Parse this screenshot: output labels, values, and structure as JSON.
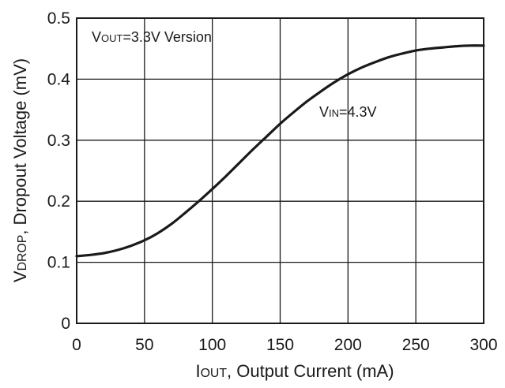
{
  "chart_data": {
    "type": "line",
    "xlabel": {
      "main": "I",
      "sub": "OUT",
      "rest": ", Output Current (mA)"
    },
    "ylabel": {
      "main": "V",
      "sub": "DROP",
      "rest": ", Dropout Voltage (mV)"
    },
    "xlim": [
      0,
      300
    ],
    "ylim": [
      0,
      0.5
    ],
    "x_ticks": [
      "0",
      "50",
      "100",
      "150",
      "200",
      "250",
      "300"
    ],
    "y_ticks": [
      "0",
      "0.1",
      "0.2",
      "0.3",
      "0.4",
      "0.5"
    ],
    "grid": true,
    "annotations": [
      {
        "main": "V",
        "sub": "OUT",
        "rest": "=3.3V Version"
      },
      {
        "main": "V",
        "sub": "IN",
        "rest": "=4.3V"
      }
    ],
    "series": [
      {
        "name": "VIN=4.3V",
        "x": [
          0,
          10,
          20,
          30,
          40,
          50,
          60,
          70,
          80,
          90,
          100,
          110,
          120,
          130,
          140,
          150,
          160,
          170,
          180,
          190,
          200,
          210,
          220,
          230,
          240,
          250,
          260,
          270,
          280,
          290,
          300
        ],
        "y": [
          0.11,
          0.112,
          0.115,
          0.12,
          0.127,
          0.136,
          0.148,
          0.163,
          0.181,
          0.2,
          0.22,
          0.241,
          0.263,
          0.285,
          0.306,
          0.327,
          0.346,
          0.364,
          0.38,
          0.395,
          0.408,
          0.419,
          0.428,
          0.436,
          0.442,
          0.447,
          0.45,
          0.452,
          0.454,
          0.455,
          0.455
        ]
      }
    ]
  }
}
